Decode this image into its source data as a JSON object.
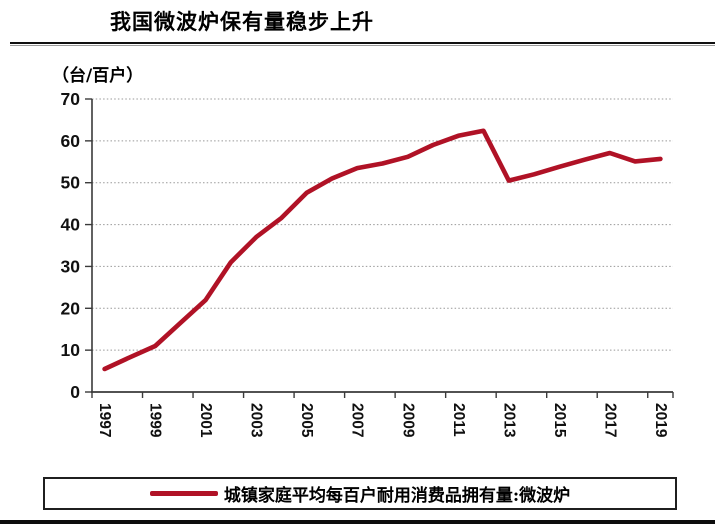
{
  "title": "我国微波炉保有量稳步上升",
  "unit_label": "（台/百户）",
  "legend": {
    "label": "城镇家庭平均每百户耐用消费品拥有量:微波炉"
  },
  "colors": {
    "line": "#B01226",
    "grid": "#999999",
    "axis": "#3a3a3a",
    "tick_text": "#111111",
    "rule": "#0d0d0d"
  },
  "chart_data": {
    "type": "line",
    "title": "我国微波炉保有量稳步上升",
    "unit": "（台/百户）",
    "x": [
      1997,
      1998,
      1999,
      2000,
      2001,
      2002,
      2003,
      2004,
      2005,
      2006,
      2007,
      2008,
      2009,
      2010,
      2011,
      2012,
      2013,
      2014,
      2015,
      2016,
      2017,
      2018,
      2019
    ],
    "series": [
      {
        "name": "城镇家庭平均每百户耐用消费品拥有量:微波炉",
        "values": [
          5.5,
          8.3,
          11.0,
          16.5,
          22.0,
          31.0,
          37.0,
          41.6,
          47.6,
          51.0,
          53.5,
          54.6,
          56.2,
          59.0,
          61.2,
          62.4,
          50.5,
          52.0,
          53.8,
          55.5,
          57.1,
          55.1,
          55.7
        ]
      }
    ],
    "xtick_labels": [
      "1997",
      "1999",
      "2001",
      "2003",
      "2005",
      "2007",
      "2009",
      "2011",
      "2013",
      "2015",
      "2017",
      "2019"
    ],
    "ytick_labels": [
      "0",
      "10",
      "20",
      "30",
      "40",
      "50",
      "60",
      "70"
    ],
    "ylim": [
      0,
      70
    ],
    "ytick_interval": 10,
    "grid": "horizontal-dotted",
    "legend_position": "bottom",
    "xlabel": "",
    "ylabel": "（台/百户）"
  }
}
